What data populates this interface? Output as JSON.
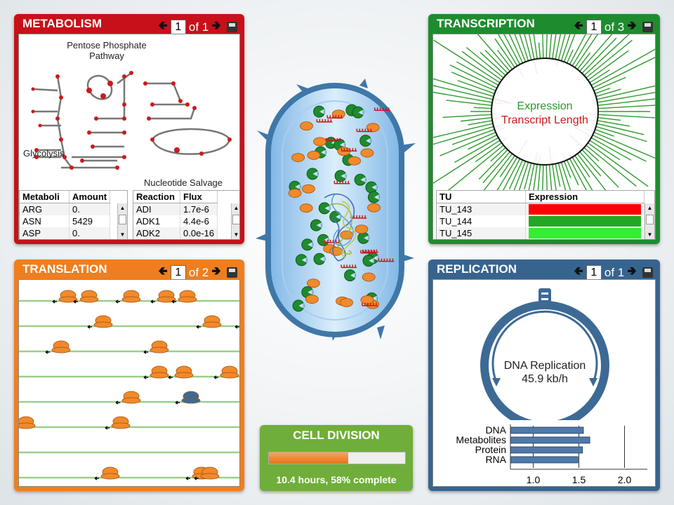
{
  "metabolism": {
    "title": "METABOLISM",
    "page": "1",
    "of": "of 1",
    "pathway_labels": {
      "ppp": "Pentose Phosphate Pathway",
      "glycolysis": "Glycolysis",
      "nucleotide": "Nucleotide Salvage"
    },
    "table1": {
      "headers": [
        "Metaboli",
        "Amount"
      ],
      "rows": [
        [
          "ARG",
          "0."
        ],
        [
          "ASN",
          "5429"
        ],
        [
          "ASP",
          "0."
        ]
      ]
    },
    "table2": {
      "headers": [
        "Reaction",
        "Flux"
      ],
      "rows": [
        [
          "ADI",
          "1.7e-6"
        ],
        [
          "ADK1",
          "4.4e-6"
        ],
        [
          "ADK2",
          "0.0e-16"
        ]
      ]
    }
  },
  "transcription": {
    "title": "TRANSCRIPTION",
    "page": "1",
    "of": "of 3",
    "circle_label_1": "Expression",
    "circle_label_2": "Transcript Length",
    "table": {
      "headers": [
        "TU",
        "Expression"
      ],
      "rows": [
        {
          "tu": "TU_143",
          "color": "#ff0000"
        },
        {
          "tu": "TU_144",
          "color": "#22a822"
        },
        {
          "tu": "TU_145",
          "color": "#33ee33"
        }
      ]
    }
  },
  "translation": {
    "title": "TRANSLATION",
    "page": "1",
    "of": "of 2"
  },
  "replication": {
    "title": "REPLICATION",
    "page": "1",
    "of": "of 1",
    "center_label": "DNA Replication",
    "rate": "45.9 kb/h"
  },
  "cell_division": {
    "title": "CELL DIVISION",
    "progress": 0.58,
    "status": "10.4 hours, 58% complete"
  },
  "chart_data": {
    "type": "bar",
    "orientation": "horizontal",
    "categories": [
      "DNA",
      "Metabolites",
      "Protein",
      "RNA"
    ],
    "values": [
      1.55,
      1.62,
      1.54,
      1.49
    ],
    "xlim": [
      0.75,
      2.25
    ],
    "xticks": [
      "1.0",
      "1.5",
      "2.0"
    ],
    "color": "#4f79a8"
  }
}
